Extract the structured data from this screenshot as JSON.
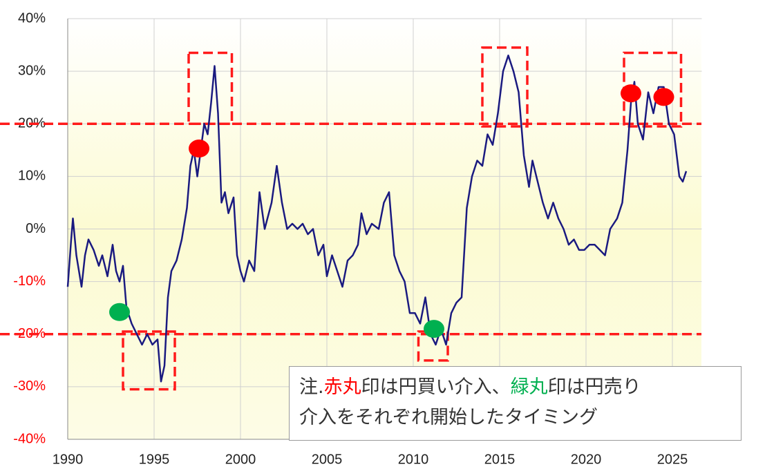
{
  "chart_data": {
    "type": "line",
    "x": [
      1990.0,
      1990.2,
      1990.3,
      1990.5,
      1990.8,
      1991.0,
      1991.2,
      1991.5,
      1991.8,
      1992.0,
      1992.3,
      1992.6,
      1992.8,
      1993.0,
      1993.2,
      1993.4,
      1993.7,
      1994.0,
      1994.3,
      1994.6,
      1994.9,
      1995.2,
      1995.4,
      1995.6,
      1995.8,
      1996.0,
      1996.3,
      1996.6,
      1996.9,
      1997.1,
      1997.3,
      1997.5,
      1997.7,
      1997.9,
      1998.1,
      1998.3,
      1998.5,
      1998.7,
      1998.9,
      1999.1,
      1999.3,
      1999.6,
      1999.8,
      2000.0,
      2000.2,
      2000.5,
      2000.8,
      2001.1,
      2001.4,
      2001.8,
      2002.1,
      2002.4,
      2002.7,
      2003.0,
      2003.3,
      2003.6,
      2003.9,
      2004.2,
      2004.5,
      2004.8,
      2005.0,
      2005.3,
      2005.6,
      2005.9,
      2006.2,
      2006.5,
      2006.8,
      2007.0,
      2007.3,
      2007.6,
      2008.0,
      2008.3,
      2008.6,
      2008.9,
      2009.2,
      2009.5,
      2009.8,
      2010.1,
      2010.4,
      2010.7,
      2011.0,
      2011.3,
      2011.6,
      2011.9,
      2012.2,
      2012.5,
      2012.8,
      2013.1,
      2013.4,
      2013.7,
      2014.0,
      2014.3,
      2014.6,
      2014.9,
      2015.2,
      2015.5,
      2015.8,
      2016.1,
      2016.4,
      2016.7,
      2016.9,
      2017.2,
      2017.5,
      2017.8,
      2018.1,
      2018.4,
      2018.7,
      2019.0,
      2019.3,
      2019.6,
      2019.9,
      2020.2,
      2020.5,
      2020.8,
      2021.1,
      2021.4,
      2021.8,
      2022.1,
      2022.4,
      2022.6,
      2022.8,
      2023.0,
      2023.3,
      2023.6,
      2023.9,
      2024.2,
      2024.5,
      2024.8,
      2025.1,
      2025.4,
      2025.6,
      2025.8
    ],
    "series": [
      {
        "color": "#1a1a80",
        "values": [
          -11,
          -2,
          2,
          -5,
          -11,
          -5,
          -2,
          -4,
          -7,
          -5,
          -9,
          -3,
          -8,
          -10,
          -7,
          -15,
          -18,
          -20,
          -22,
          -20,
          -22,
          -21,
          -29,
          -26,
          -13,
          -8,
          -6,
          -2,
          4,
          12,
          15,
          10,
          15,
          20,
          18,
          24,
          31,
          22,
          5,
          7,
          3,
          6,
          -5,
          -8,
          -10,
          -6,
          -8,
          7,
          0,
          5,
          12,
          5,
          0,
          1,
          0,
          1,
          -1,
          0,
          -5,
          -3,
          -9,
          -5,
          -8,
          -11,
          -6,
          -5,
          -3,
          3,
          -1,
          1,
          0,
          5,
          7,
          -5,
          -8,
          -10,
          -16,
          -16,
          -18,
          -13,
          -20,
          -22,
          -19,
          -22,
          -16,
          -14,
          -13,
          4,
          10,
          13,
          12,
          18,
          16,
          22,
          30,
          33,
          30,
          26,
          14,
          8,
          13,
          9,
          5,
          2,
          5,
          2,
          0,
          -3,
          -2,
          -4,
          -4,
          -3,
          -3,
          -4,
          -5,
          0,
          2,
          5,
          15,
          24,
          28,
          20,
          17,
          26,
          22,
          27,
          27,
          20,
          18,
          10,
          9,
          11
        ]
      }
    ],
    "xlim": [
      1990,
      2026.7
    ],
    "xticks": [
      1990,
      1995,
      2000,
      2005,
      2010,
      2015,
      2020,
      2025
    ],
    "ylim": [
      -40,
      40
    ],
    "yticks": [
      {
        "value": -40,
        "label": "-40%"
      },
      {
        "value": -30,
        "label": "-30%"
      },
      {
        "value": -20,
        "label": "-20%"
      },
      {
        "value": -10,
        "label": "-10%"
      },
      {
        "value": 0,
        "label": "0%"
      },
      {
        "value": 10,
        "label": "10%"
      },
      {
        "value": 20,
        "label": "20%"
      },
      {
        "value": 30,
        "label": "30%"
      },
      {
        "value": 40,
        "label": "40%"
      }
    ],
    "grid": true,
    "negative_tick_color": "#ff0000",
    "reference_lines": [
      20,
      -20
    ],
    "reference_color": "#ff1a1a",
    "highlight_boxes": [
      {
        "x": [
          1997.0,
          1999.5
        ],
        "y": [
          20,
          33.5
        ]
      },
      {
        "x": [
          1993.2,
          1996.2
        ],
        "y": [
          -19.5,
          -30.5
        ]
      },
      {
        "x": [
          2010.3,
          2012.0
        ],
        "y": [
          -19.5,
          -25
        ]
      },
      {
        "x": [
          2014.0,
          2016.6
        ],
        "y": [
          19.5,
          34.5
        ]
      },
      {
        "x": [
          2022.2,
          2025.5
        ],
        "y": [
          19.5,
          33.5
        ]
      }
    ],
    "markers": [
      {
        "x": 1997.6,
        "y": 15.3,
        "color": "#ff0000"
      },
      {
        "x": 2022.6,
        "y": 25.8,
        "color": "#ff0000"
      },
      {
        "x": 2024.5,
        "y": 25.1,
        "color": "#ff0000"
      },
      {
        "x": 1993.0,
        "y": -15.8,
        "color": "#00b050"
      },
      {
        "x": 2011.2,
        "y": -19.0,
        "color": "#00b050"
      }
    ]
  },
  "note": {
    "lines": [
      [
        {
          "text": "注.",
          "color": "#333333"
        },
        {
          "text": "赤丸",
          "color": "#ff0000"
        },
        {
          "text": "印は円買い介入、",
          "color": "#333333"
        },
        {
          "text": "緑丸",
          "color": "#00b050"
        },
        {
          "text": "印は円売り",
          "color": "#333333"
        }
      ],
      [
        {
          "text": "介入をそれぞれ開始したタイミング",
          "color": "#333333"
        }
      ]
    ]
  }
}
